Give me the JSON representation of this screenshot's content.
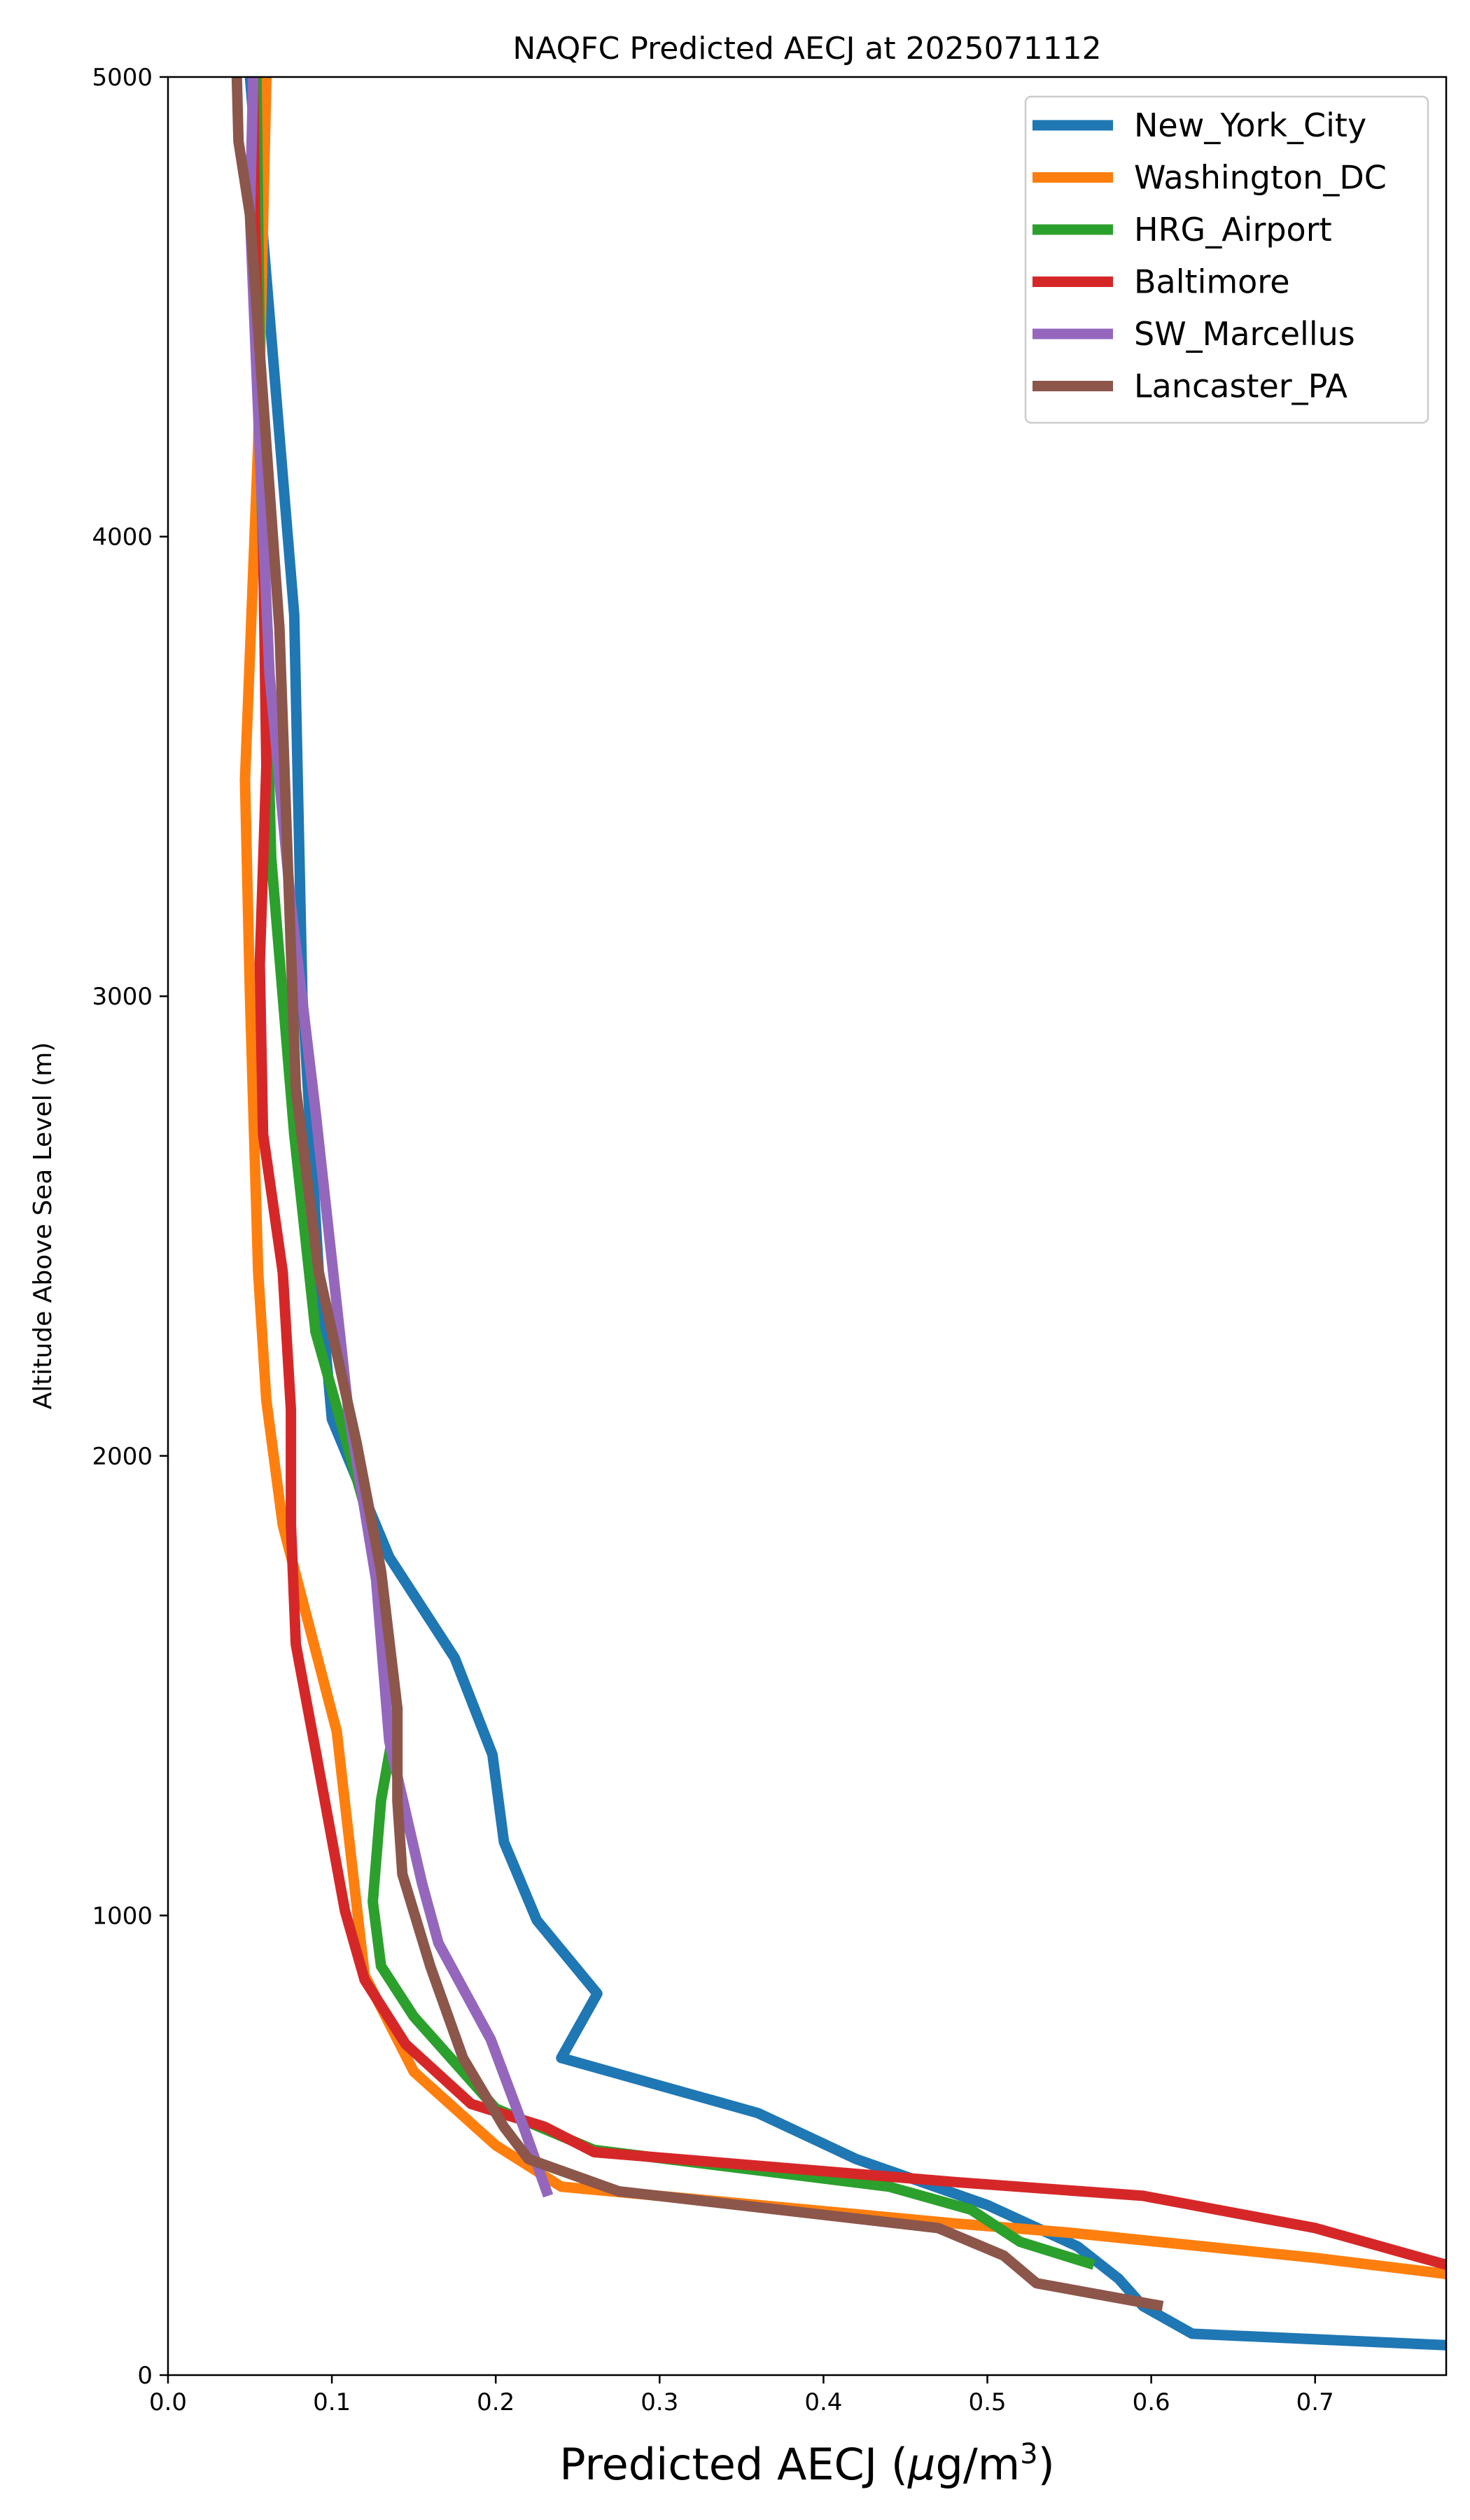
{
  "chart_data": {
    "type": "line",
    "title": "NAQFC Predicted AECJ at 2025071112",
    "xlabel_main": "Predicted AECJ (",
    "xlabel_mu": "μ",
    "xlabel_unit": "g/m",
    "xlabel_exp": "3",
    "xlabel_close": ")",
    "ylabel": "Altitude Above Sea Level (m)",
    "xlim": [
      0.0,
      0.78
    ],
    "ylim": [
      0,
      5000
    ],
    "x_ticks": [
      0.0,
      0.1,
      0.2,
      0.3,
      0.4,
      0.5,
      0.6,
      0.7
    ],
    "x_tick_labels": [
      "0.0",
      "0.1",
      "0.2",
      "0.3",
      "0.4",
      "0.5",
      "0.6",
      "0.7"
    ],
    "y_ticks": [
      0,
      1000,
      2000,
      3000,
      4000,
      5000
    ],
    "y_tick_labels": [
      "0",
      "1000",
      "2000",
      "3000",
      "4000",
      "5000"
    ],
    "grid": false,
    "legend_position": "top-right",
    "series": [
      {
        "name": "New_York_City",
        "color": "#1f77b4",
        "points": [
          [
            0.78,
            65
          ],
          [
            0.625,
            90
          ],
          [
            0.595,
            150
          ],
          [
            0.58,
            210
          ],
          [
            0.555,
            280
          ],
          [
            0.5,
            370
          ],
          [
            0.42,
            470
          ],
          [
            0.36,
            570
          ],
          [
            0.24,
            690
          ],
          [
            0.262,
            830
          ],
          [
            0.225,
            990
          ],
          [
            0.205,
            1160
          ],
          [
            0.198,
            1350
          ],
          [
            0.175,
            1560
          ],
          [
            0.135,
            1780
          ],
          [
            0.1,
            2080
          ],
          [
            0.092,
            2400
          ],
          [
            0.082,
            3000
          ],
          [
            0.077,
            3830
          ],
          [
            0.065,
            4350
          ],
          [
            0.05,
            5000
          ]
        ]
      },
      {
        "name": "Washington_DC",
        "color": "#ff7f0e",
        "points": [
          [
            0.78,
            220
          ],
          [
            0.7,
            255
          ],
          [
            0.55,
            310
          ],
          [
            0.48,
            330
          ],
          [
            0.27,
            400
          ],
          [
            0.24,
            410
          ],
          [
            0.2,
            500
          ],
          [
            0.15,
            660
          ],
          [
            0.12,
            870
          ],
          [
            0.103,
            1400
          ],
          [
            0.07,
            1850
          ],
          [
            0.06,
            2120
          ],
          [
            0.055,
            2400
          ],
          [
            0.05,
            3000
          ],
          [
            0.047,
            3470
          ],
          [
            0.055,
            4200
          ],
          [
            0.06,
            5000
          ]
        ]
      },
      {
        "name": "HRG_Airport",
        "color": "#2ca02c",
        "points": [
          [
            0.565,
            240
          ],
          [
            0.52,
            290
          ],
          [
            0.49,
            360
          ],
          [
            0.44,
            410
          ],
          [
            0.26,
            490
          ],
          [
            0.2,
            580
          ],
          [
            0.15,
            780
          ],
          [
            0.13,
            890
          ],
          [
            0.125,
            1030
          ],
          [
            0.13,
            1250
          ],
          [
            0.14,
            1450
          ],
          [
            0.12,
            1890
          ],
          [
            0.09,
            2270
          ],
          [
            0.077,
            2700
          ],
          [
            0.063,
            3300
          ],
          [
            0.057,
            4100
          ],
          [
            0.054,
            5000
          ]
        ]
      },
      {
        "name": "Baltimore",
        "color": "#d62728",
        "points": [
          [
            0.78,
            240
          ],
          [
            0.7,
            320
          ],
          [
            0.595,
            390
          ],
          [
            0.48,
            420
          ],
          [
            0.26,
            485
          ],
          [
            0.23,
            540
          ],
          [
            0.185,
            590
          ],
          [
            0.145,
            720
          ],
          [
            0.12,
            860
          ],
          [
            0.108,
            1010
          ],
          [
            0.09,
            1360
          ],
          [
            0.078,
            1590
          ],
          [
            0.075,
            1850
          ],
          [
            0.075,
            2100
          ],
          [
            0.07,
            2400
          ],
          [
            0.058,
            2700
          ],
          [
            0.056,
            3070
          ],
          [
            0.06,
            3500
          ],
          [
            0.058,
            4000
          ],
          [
            0.053,
            4700
          ],
          [
            0.052,
            5000
          ]
        ]
      },
      {
        "name": "SW_Marcellus",
        "color": "#9467bd",
        "points": [
          [
            0.232,
            390
          ],
          [
            0.218,
            530
          ],
          [
            0.197,
            730
          ],
          [
            0.165,
            940
          ],
          [
            0.155,
            1070
          ],
          [
            0.135,
            1380
          ],
          [
            0.127,
            1730
          ],
          [
            0.11,
            2100
          ],
          [
            0.09,
            2750
          ],
          [
            0.075,
            3200
          ],
          [
            0.062,
            3700
          ],
          [
            0.057,
            4100
          ],
          [
            0.05,
            4700
          ],
          [
            0.052,
            5000
          ]
        ]
      },
      {
        "name": "Lancaster_PA",
        "color": "#8c564b",
        "points": [
          [
            0.607,
            150
          ],
          [
            0.53,
            200
          ],
          [
            0.51,
            260
          ],
          [
            0.47,
            320
          ],
          [
            0.275,
            400
          ],
          [
            0.22,
            470
          ],
          [
            0.205,
            540
          ],
          [
            0.18,
            690
          ],
          [
            0.16,
            890
          ],
          [
            0.143,
            1090
          ],
          [
            0.14,
            1250
          ],
          [
            0.14,
            1450
          ],
          [
            0.13,
            1750
          ],
          [
            0.115,
            2030
          ],
          [
            0.092,
            2400
          ],
          [
            0.078,
            2800
          ],
          [
            0.068,
            3800
          ],
          [
            0.06,
            4200
          ],
          [
            0.05,
            4700
          ],
          [
            0.043,
            4860
          ],
          [
            0.042,
            5000
          ]
        ]
      }
    ]
  }
}
